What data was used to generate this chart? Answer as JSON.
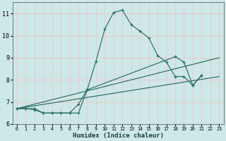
{
  "xlabel": "Humidex (Indice chaleur)",
  "xlim": [
    -0.5,
    23.5
  ],
  "ylim": [
    6,
    11.5
  ],
  "yticks": [
    6,
    7,
    8,
    9,
    10,
    11
  ],
  "xticks": [
    0,
    1,
    2,
    3,
    4,
    5,
    6,
    7,
    8,
    9,
    10,
    11,
    12,
    13,
    14,
    15,
    16,
    17,
    18,
    19,
    20,
    21,
    22,
    23
  ],
  "background_color": "#cde8e8",
  "grid_color": "#f0c8c8",
  "line_color": "#2a6e64",
  "series1": {
    "x": [
      0,
      1,
      2,
      3,
      4,
      5,
      6,
      7,
      8,
      9,
      10,
      11,
      12,
      13,
      14,
      15,
      16,
      17,
      18,
      19,
      20,
      21
    ],
    "y": [
      6.7,
      6.7,
      6.7,
      6.5,
      6.5,
      6.5,
      6.5,
      6.5,
      7.55,
      8.85,
      10.3,
      11.05,
      11.15,
      10.5,
      10.2,
      9.9,
      9.1,
      8.8,
      8.15,
      8.15,
      7.75,
      8.2
    ]
  },
  "series2": {
    "x": [
      0,
      1,
      2,
      3,
      4,
      5,
      6,
      7,
      8,
      18,
      19,
      20,
      21
    ],
    "y": [
      6.7,
      6.7,
      6.65,
      6.5,
      6.5,
      6.5,
      6.5,
      6.9,
      7.55,
      9.05,
      8.8,
      7.75,
      8.2
    ]
  },
  "line1": {
    "x": [
      0,
      23
    ],
    "y": [
      6.7,
      9.0
    ]
  },
  "line2": {
    "x": [
      0,
      23
    ],
    "y": [
      6.7,
      8.15
    ]
  }
}
